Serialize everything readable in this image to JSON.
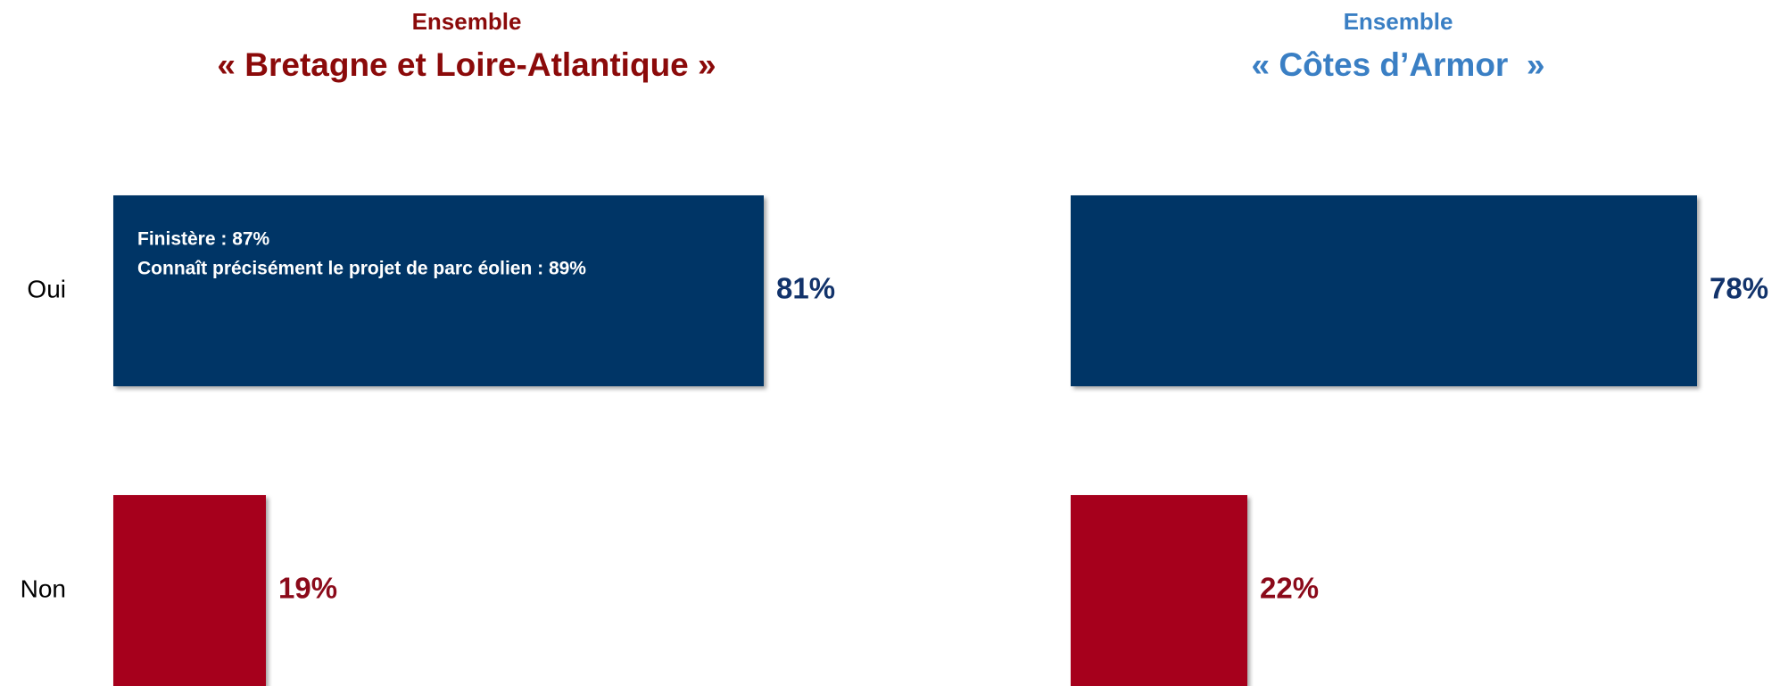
{
  "chart_data": [
    {
      "type": "bar",
      "orientation": "horizontal",
      "subtitle": "Ensemble",
      "title": "« Bretagne et Loire-Atlantique »",
      "title_color": "#8b0a0a",
      "categories": [
        "Oui",
        "Non"
      ],
      "values": [
        81,
        19
      ],
      "value_labels": [
        "81%",
        "19%"
      ],
      "colors": [
        "#003566",
        "#a6001f"
      ],
      "label_colors": [
        "#12336b",
        "#8b0a1a"
      ],
      "annotations": [
        "Finistère : 87%",
        "Connaît précisément le projet de parc éolien : 89%"
      ],
      "xlim": [
        0,
        100
      ]
    },
    {
      "type": "bar",
      "orientation": "horizontal",
      "subtitle": "Ensemble",
      "title": "« Côtes d’Armor  »",
      "title_color": "#3a7fc4",
      "categories": [
        null,
        null
      ],
      "values": [
        78,
        22
      ],
      "value_labels": [
        "78%",
        "22%"
      ],
      "colors": [
        "#003566",
        "#a6001f"
      ],
      "label_colors": [
        "#12336b",
        "#8b0a1a"
      ],
      "xlim": [
        0,
        100
      ]
    }
  ]
}
